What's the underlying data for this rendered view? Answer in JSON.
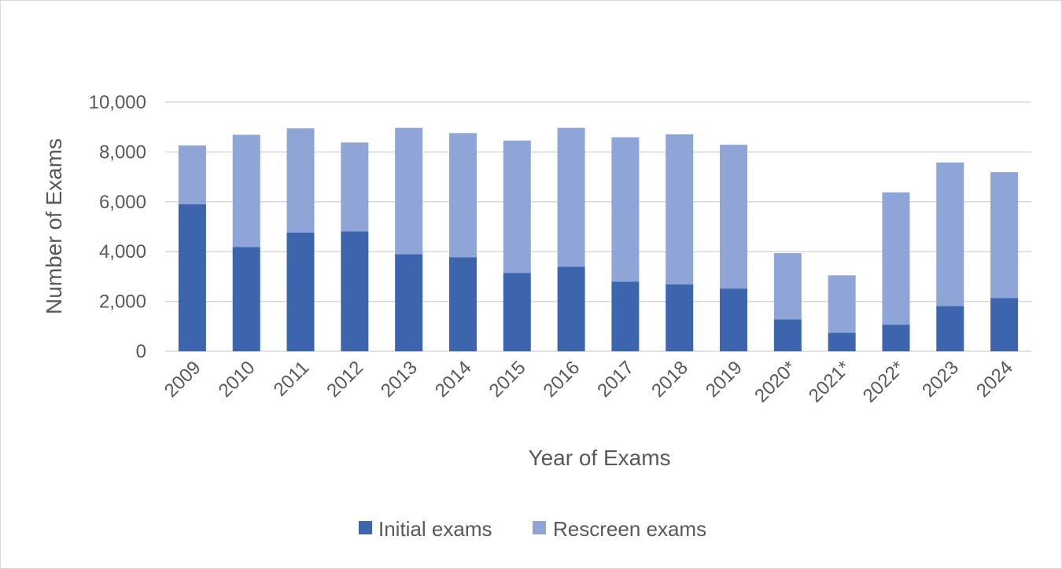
{
  "chart_data": {
    "type": "bar",
    "stacked": true,
    "title": "",
    "xlabel": "Year of Exams",
    "ylabel": "Number of Exams",
    "ylim": [
      0,
      10000
    ],
    "yticks": [
      0,
      2000,
      4000,
      6000,
      8000,
      10000
    ],
    "ytick_labels": [
      "0",
      "2,000",
      "4,000",
      "6,000",
      "8,000",
      "10,000"
    ],
    "grid": true,
    "legend_position": "bottom",
    "categories": [
      "2009",
      "2010",
      "2011",
      "2012",
      "2013",
      "2014",
      "2015",
      "2016",
      "2017",
      "2018",
      "2019",
      "2020*",
      "2021*",
      "2022*",
      "2023",
      "2024"
    ],
    "series": [
      {
        "name": "Initial exams",
        "color": "#3d65ae",
        "values": [
          5900,
          4190,
          4770,
          4810,
          3900,
          3770,
          3150,
          3390,
          2800,
          2690,
          2520,
          1280,
          740,
          1070,
          1820,
          2140
        ]
      },
      {
        "name": "Rescreen exams",
        "color": "#8fa5d7",
        "values": [
          2360,
          4500,
          4180,
          3570,
          5070,
          4990,
          5310,
          5580,
          5790,
          6020,
          5770,
          2660,
          2310,
          5310,
          5760,
          5050
        ]
      }
    ]
  }
}
